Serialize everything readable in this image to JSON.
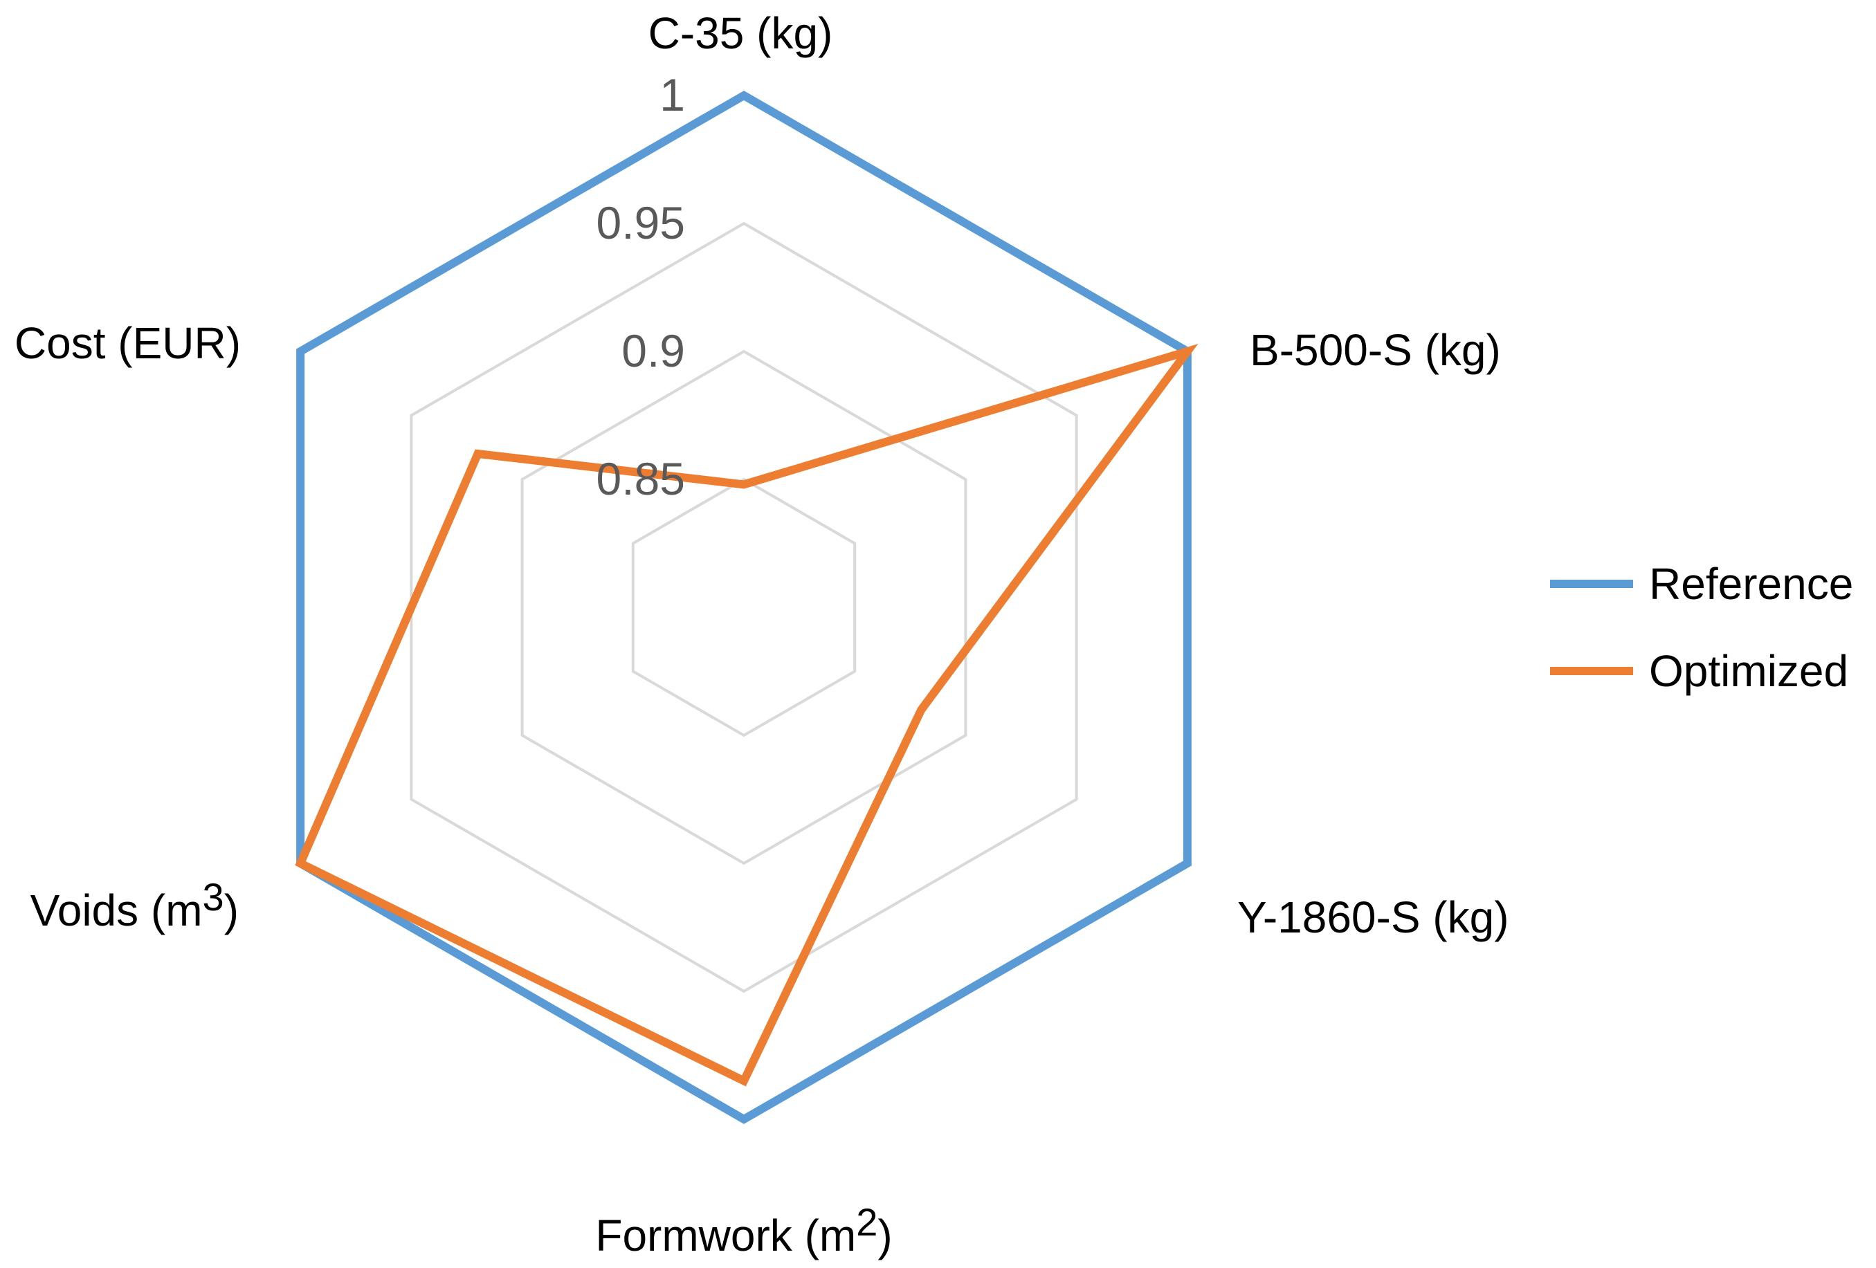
{
  "chart_data": {
    "type": "radar",
    "categories": [
      "C-35 (kg)",
      "B-500-S (kg)",
      "Y-1860-S (kg)",
      "Formwork (m2)",
      "Voids (m3)",
      "Cost (EUR)"
    ],
    "category_labels": [
      {
        "text": "C-35 (kg)",
        "sup": ""
      },
      {
        "text": "B-500-S (kg)",
        "sup": ""
      },
      {
        "text": "Y-1860-S (kg)",
        "sup": ""
      },
      {
        "text": "Formwork (m",
        "sup": "2",
        "suffix": ")"
      },
      {
        "text": "Voids (m",
        "sup": "3",
        "suffix": ")"
      },
      {
        "text": "Cost (EUR)",
        "sup": ""
      }
    ],
    "rmin": 0.8,
    "rmax": 1.0,
    "ticks": [
      0.85,
      0.9,
      0.95,
      1.0
    ],
    "tick_labels": [
      "0.85",
      "0.9",
      "0.95",
      "1"
    ],
    "series": [
      {
        "name": "Reference",
        "color": "#5b9bd5",
        "values": [
          1,
          1,
          1,
          1,
          1,
          1
        ]
      },
      {
        "name": "Optimized",
        "color": "#ed7d31",
        "values": [
          0.848,
          1.0,
          0.88,
          0.985,
          1.0,
          0.92
        ]
      }
    ],
    "legend_position": "right",
    "grid": true
  }
}
